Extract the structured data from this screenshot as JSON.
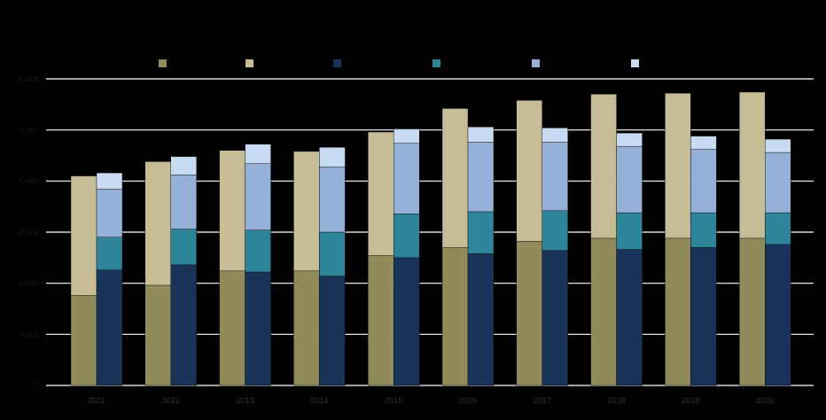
{
  "chart_data": {
    "type": "bar",
    "stacked_groups": true,
    "categories": [
      "2011",
      "2012",
      "2013",
      "2014",
      "2015",
      "2016",
      "2017",
      "2018",
      "2019",
      "2020"
    ],
    "y_tick_labels": [
      "0",
      "5,000",
      "10,000",
      "15,000",
      "20,000",
      "25,000",
      "30,000"
    ],
    "ylim": [
      0,
      30000
    ],
    "grid": true,
    "legend_position": "top",
    "series": [
      {
        "stack": "A",
        "color": "#918b5b",
        "values": [
          8800,
          9800,
          11200,
          11200,
          12700,
          13500,
          14100,
          14400,
          14400,
          14400
        ]
      },
      {
        "stack": "A",
        "color": "#c6bd96",
        "values": [
          11700,
          12100,
          11800,
          11700,
          12100,
          13600,
          13800,
          14100,
          14200,
          14300
        ]
      },
      {
        "stack": "B",
        "color": "#1a3459",
        "values": [
          11300,
          11800,
          11100,
          10700,
          12500,
          12900,
          13200,
          13300,
          13500,
          13800
        ]
      },
      {
        "stack": "B",
        "color": "#2e8499",
        "values": [
          3200,
          3500,
          4100,
          4300,
          4300,
          4100,
          3900,
          3600,
          3400,
          3100
        ]
      },
      {
        "stack": "B",
        "color": "#95b1d7",
        "values": [
          4700,
          5300,
          6500,
          6400,
          6900,
          6800,
          6700,
          6500,
          6200,
          5900
        ]
      },
      {
        "stack": "B",
        "color": "#c9dbf2",
        "values": [
          1600,
          1800,
          1900,
          1900,
          1400,
          1500,
          1400,
          1300,
          1300,
          1300
        ]
      }
    ]
  }
}
